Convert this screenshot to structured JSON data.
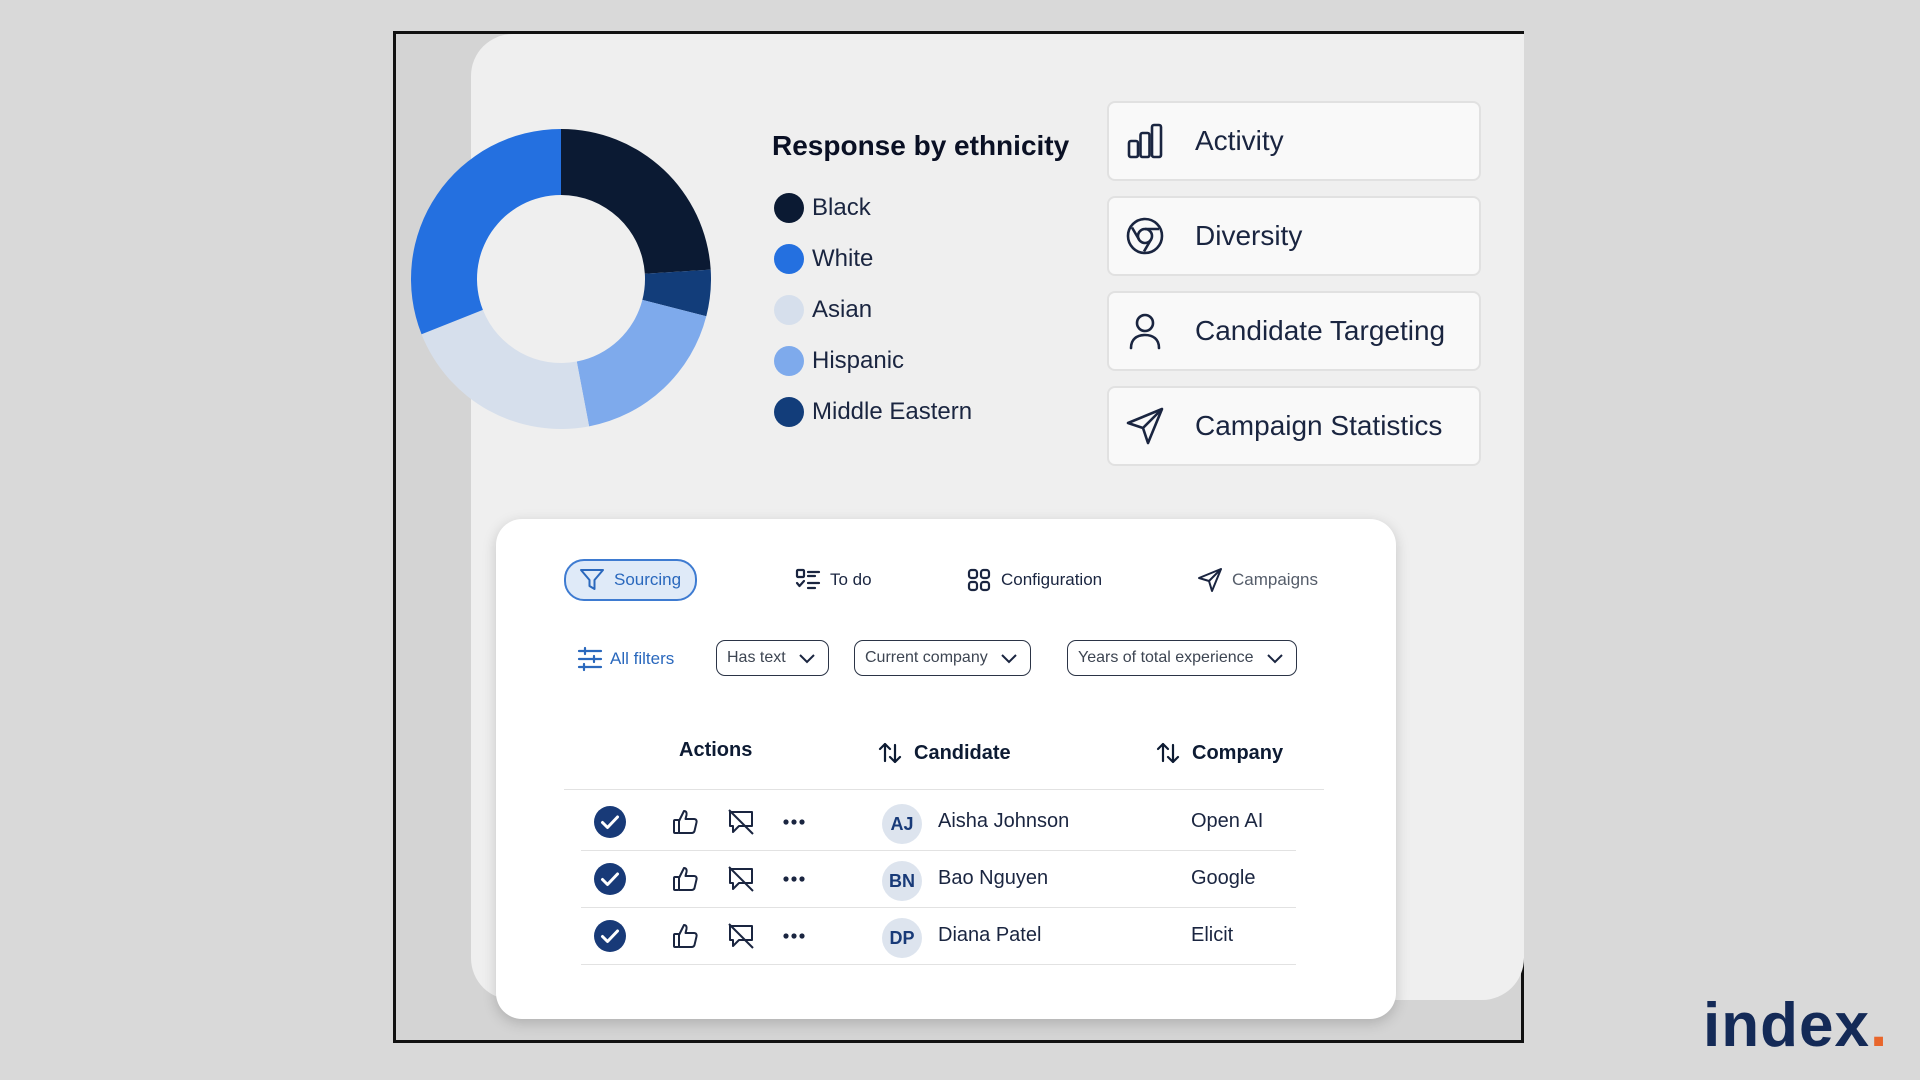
{
  "chart_data": {
    "type": "pie",
    "title": "Response by ethnicity",
    "categories": [
      "Black",
      "White",
      "Asian",
      "Hispanic",
      "Middle Eastern"
    ],
    "values": [
      24,
      31,
      22,
      18,
      5
    ],
    "slices": [
      {
        "label": "Black",
        "value": 24,
        "color": "#0b1a33"
      },
      {
        "label": "Middle Eastern",
        "value": 5,
        "color": "#123d7a"
      },
      {
        "label": "Hispanic",
        "value": 18,
        "color": "#7eaaec"
      },
      {
        "label": "Asian",
        "value": 22,
        "color": "#d6dfec"
      },
      {
        "label": "White",
        "value": 31,
        "color": "#2470e0"
      }
    ]
  },
  "legend": {
    "title": "Response by ethnicity",
    "items": [
      {
        "label": "Black",
        "color": "#0b1a33"
      },
      {
        "label": "White",
        "color": "#2470e0"
      },
      {
        "label": "Asian",
        "color": "#d6dfec"
      },
      {
        "label": "Hispanic",
        "color": "#7eaaec"
      },
      {
        "label": "Middle Eastern",
        "color": "#123d7a"
      }
    ]
  },
  "nav_cards": [
    {
      "label": "Activity",
      "icon": "bar-chart-icon"
    },
    {
      "label": "Diversity",
      "icon": "aperture-icon"
    },
    {
      "label": "Candidate Targeting",
      "icon": "person-icon"
    },
    {
      "label": "Campaign Statistics",
      "icon": "send-icon"
    }
  ],
  "tabs": {
    "sourcing": "Sourcing",
    "todo": "To do",
    "configuration": "Configuration",
    "campaigns": "Campaigns"
  },
  "filters": {
    "all": "All filters",
    "has_text": "Has text",
    "current_company": "Current company",
    "years_experience": "Years of total experience"
  },
  "table": {
    "headers": {
      "actions": "Actions",
      "candidate": "Candidate",
      "company": "Company"
    },
    "rows": [
      {
        "initials": "AJ",
        "name": "Aisha Johnson",
        "company": "Open AI"
      },
      {
        "initials": "BN",
        "name": "Bao Nguyen",
        "company": "Google"
      },
      {
        "initials": "DP",
        "name": "Diana Patel",
        "company": "Elicit"
      }
    ]
  },
  "brand": {
    "name": "index",
    "dot": "."
  },
  "colors": {
    "accent": "#2a68bd",
    "navy": "#0b1a33",
    "brand_dot": "#e8662c"
  }
}
